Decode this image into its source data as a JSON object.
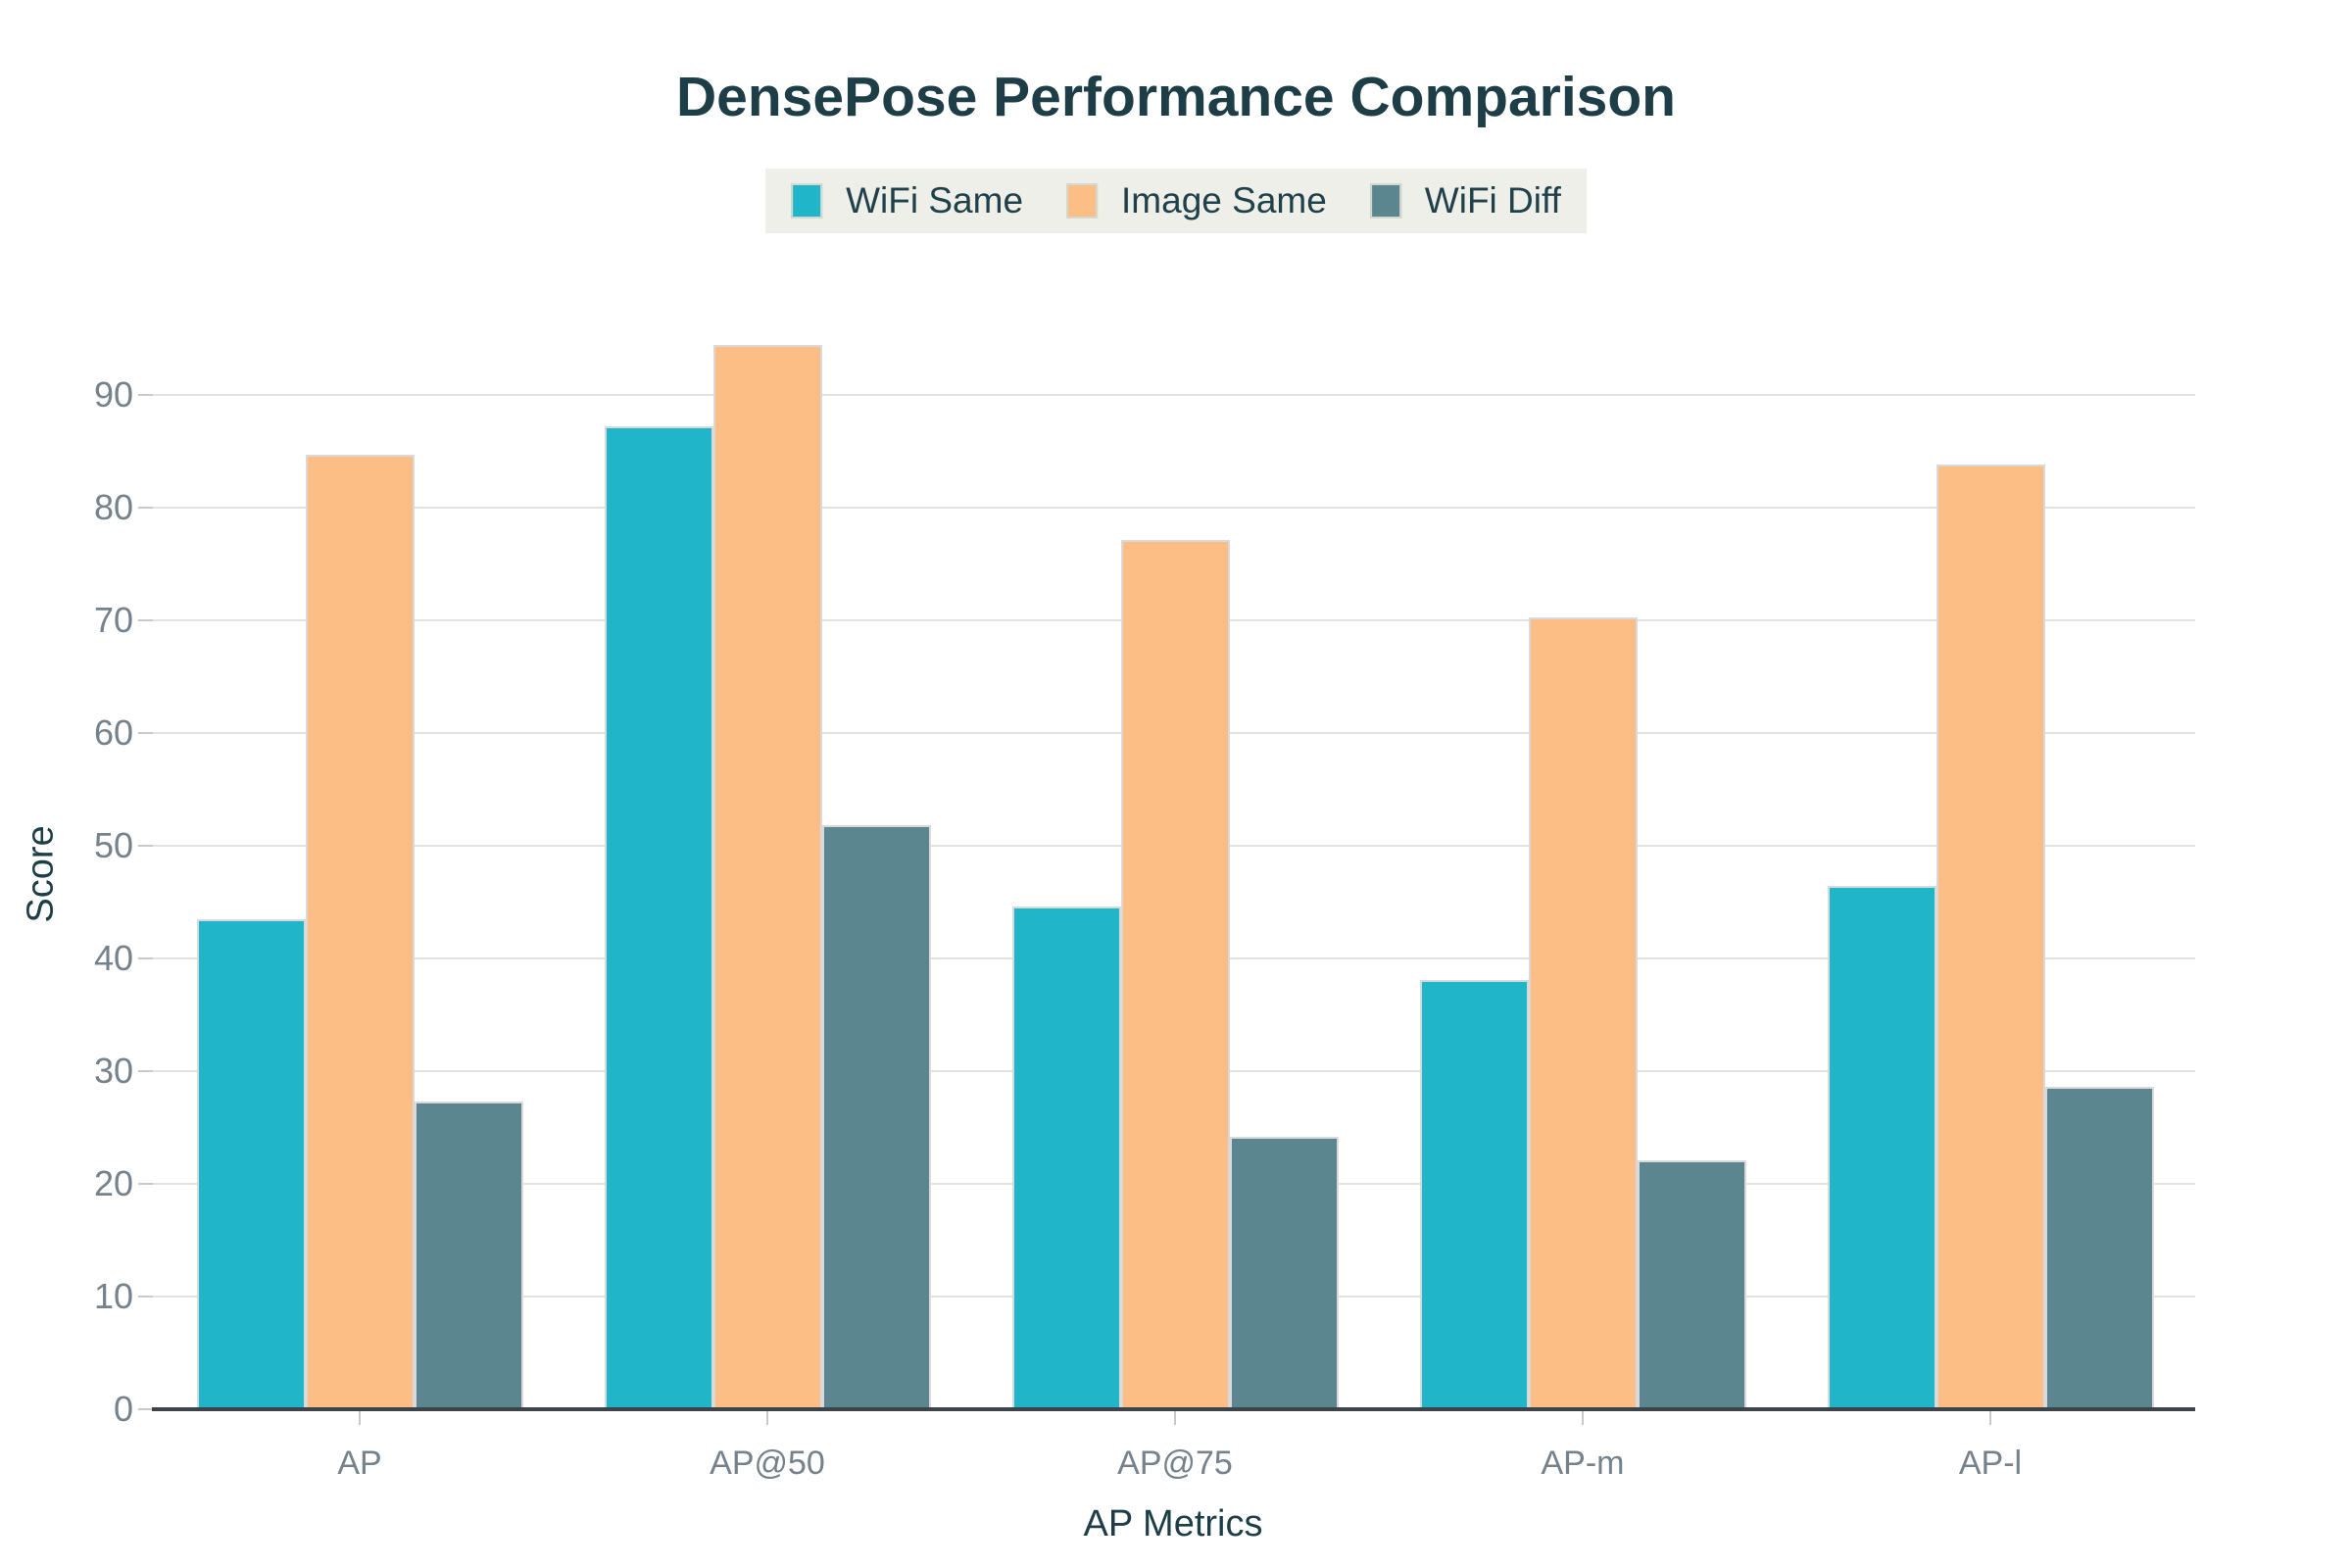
{
  "chart_data": {
    "type": "bar",
    "title": "DensePose Performance Comparison",
    "categories": [
      "AP",
      "AP@50",
      "AP@75",
      "AP-m",
      "AP-l"
    ],
    "series": [
      {
        "name": "WiFi Same",
        "color": "#21b5c9",
        "values": [
          43.5,
          87.2,
          44.6,
          38.1,
          46.4
        ]
      },
      {
        "name": "Image Same",
        "color": "#fcbe84",
        "values": [
          84.7,
          94.4,
          77.1,
          70.3,
          83.8
        ]
      },
      {
        "name": "WiFi Diff",
        "color": "#5b868f",
        "values": [
          27.3,
          51.8,
          24.2,
          22.1,
          28.6
        ]
      }
    ],
    "xlabel": "AP Metrics",
    "ylabel": "Score",
    "ylim": [
      0,
      100
    ],
    "yticks": [
      0,
      10,
      20,
      30,
      40,
      50,
      60,
      70,
      80,
      90
    ],
    "grid": true,
    "legend_position": "top-center"
  },
  "colors": {
    "title_text": "#1d3e46",
    "tick_text": "#75818b",
    "legend_bg": "#edefe8",
    "gridline": "#e2e2e2",
    "axis_line": "#3d4449",
    "bar_outline": "#d9d9d9"
  }
}
